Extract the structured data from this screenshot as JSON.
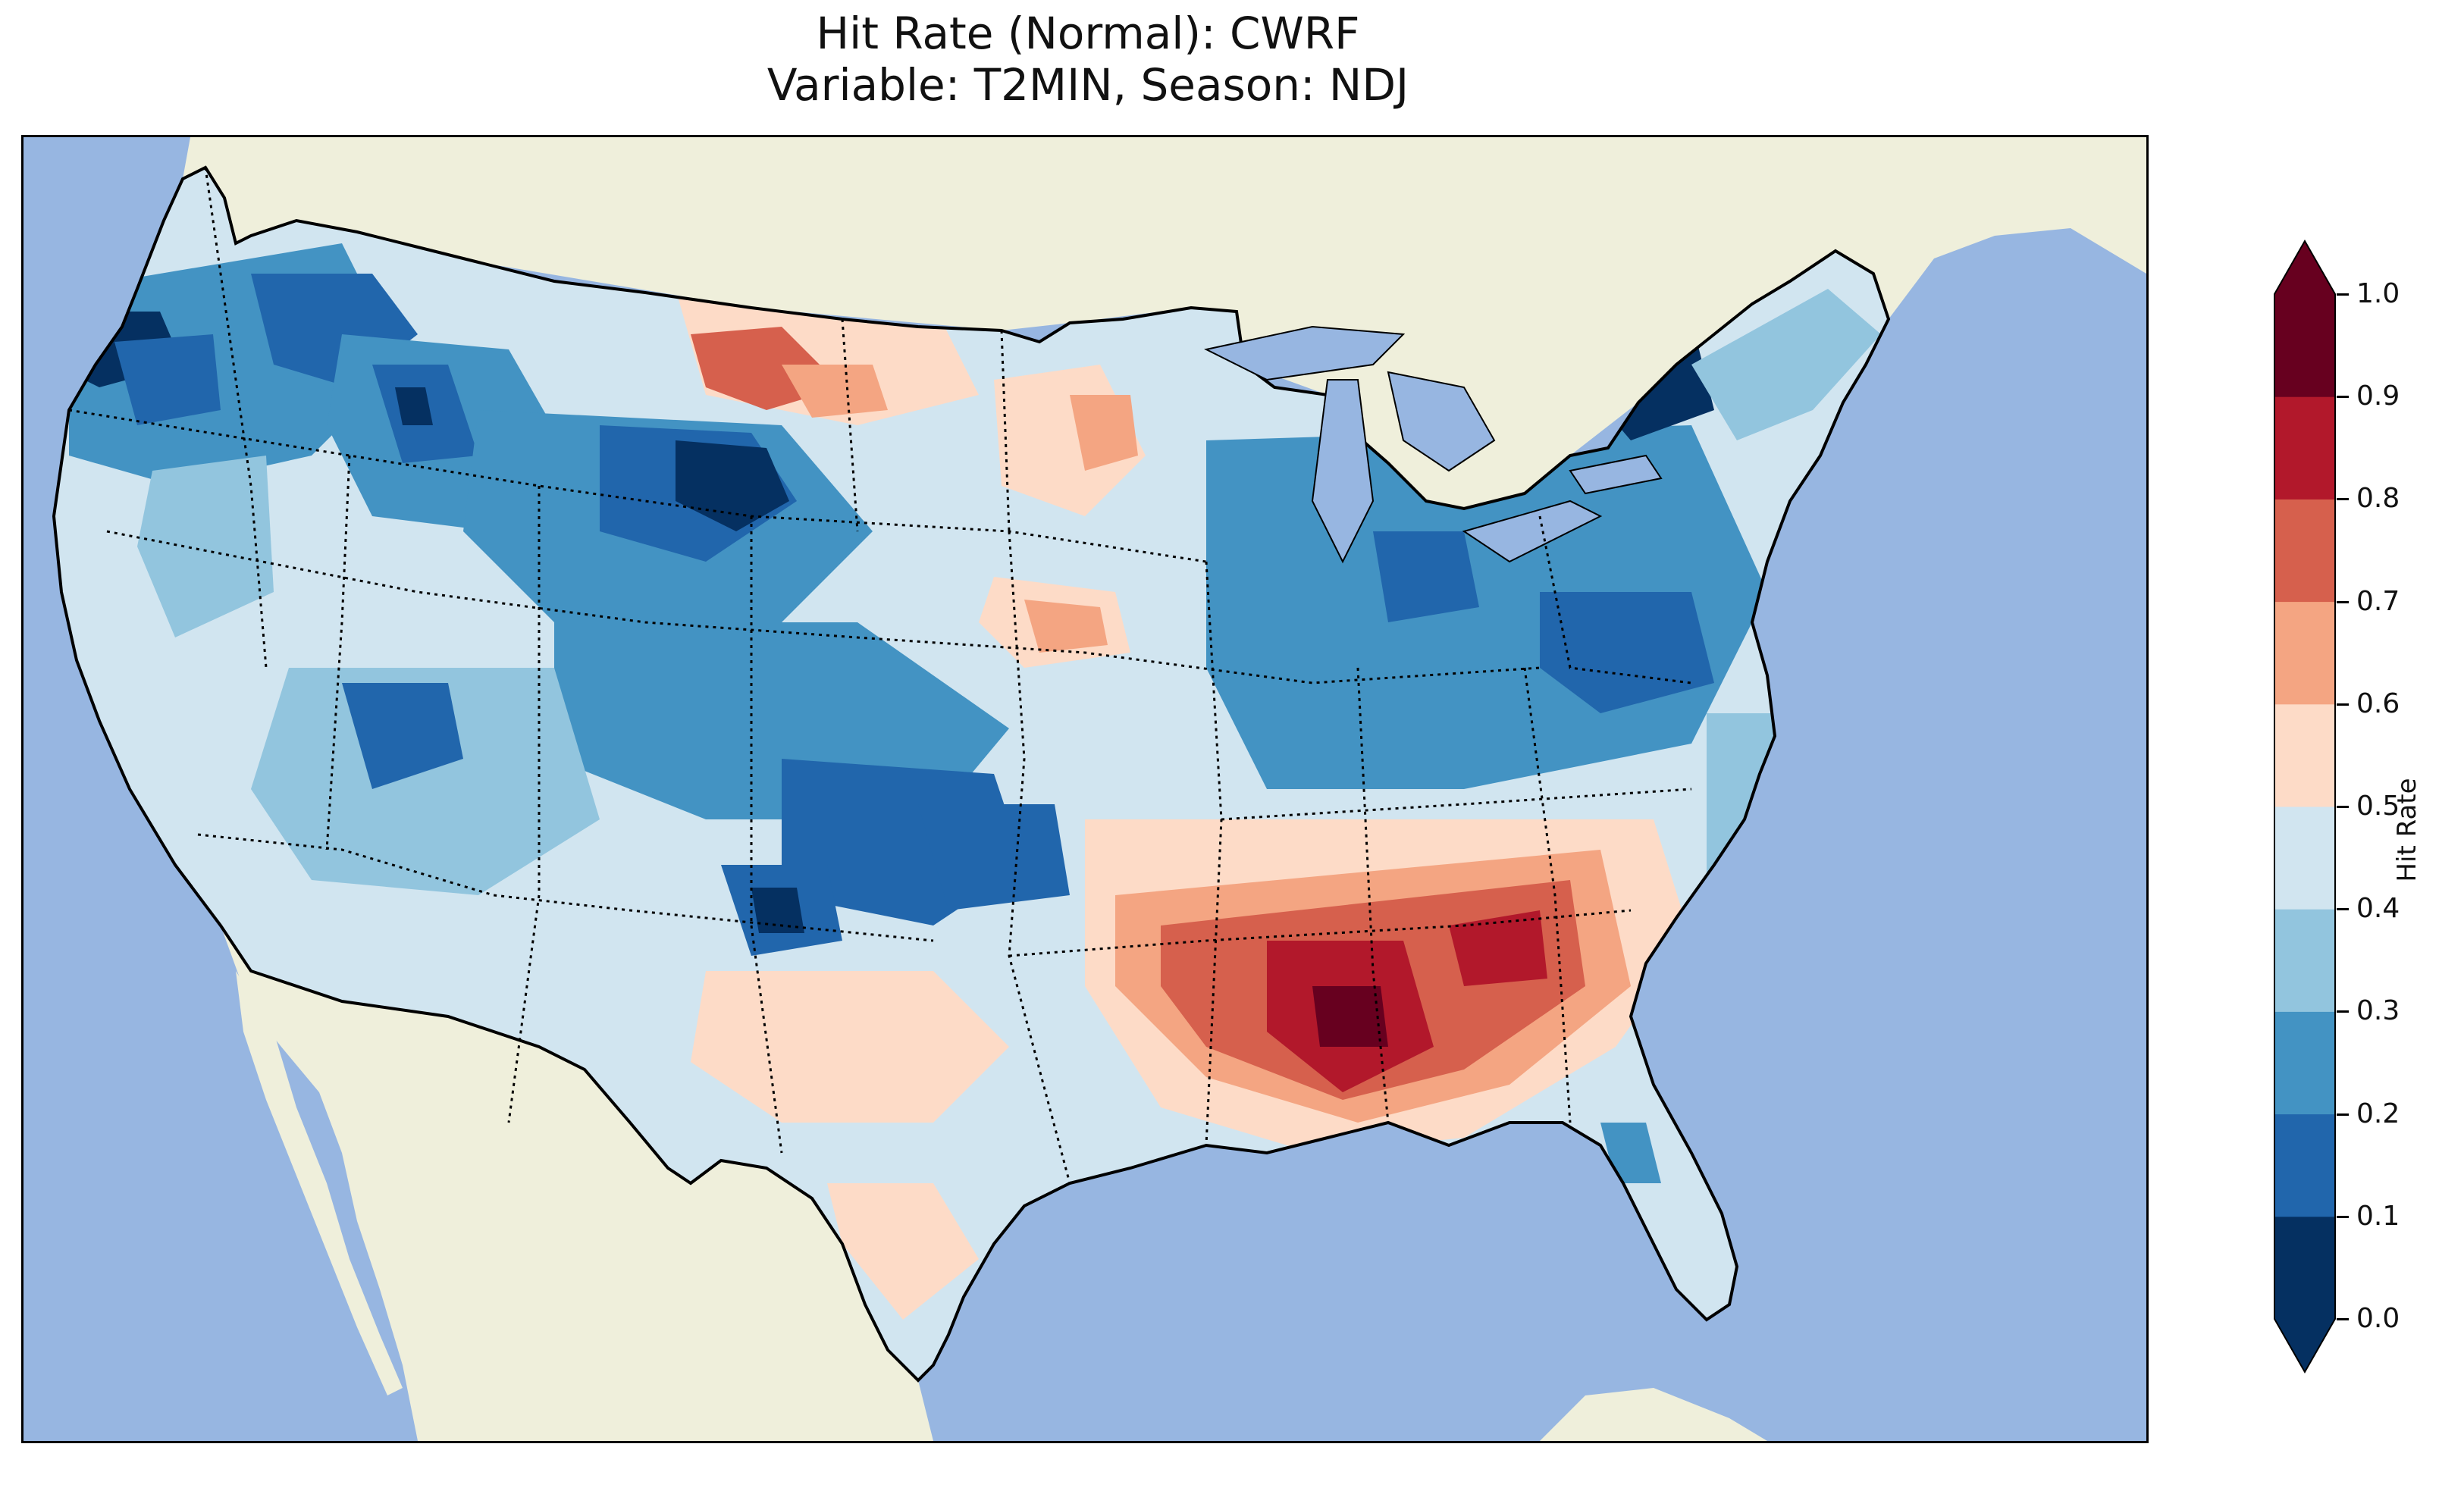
{
  "title": {
    "line1": "Hit Rate (Normal): CWRF",
    "line2": "Variable: T2MIN, Season: NDJ"
  },
  "colorbar": {
    "label": "Hit Rate",
    "ticks": [
      "0.0",
      "0.1",
      "0.2",
      "0.3",
      "0.4",
      "0.5",
      "0.6",
      "0.7",
      "0.8",
      "0.9",
      "1.0"
    ],
    "bins": [
      {
        "range": "0.0-0.1",
        "color": "#053061"
      },
      {
        "range": "0.1-0.2",
        "color": "#2166ac"
      },
      {
        "range": "0.2-0.3",
        "color": "#4393c3"
      },
      {
        "range": "0.3-0.4",
        "color": "#92c5de"
      },
      {
        "range": "0.4-0.5",
        "color": "#d1e5f0"
      },
      {
        "range": "0.5-0.6",
        "color": "#fddbc7"
      },
      {
        "range": "0.6-0.7",
        "color": "#f4a582"
      },
      {
        "range": "0.7-0.8",
        "color": "#d6604d"
      },
      {
        "range": "0.8-0.9",
        "color": "#b2182b"
      },
      {
        "range": "0.9-1.0",
        "color": "#67001f"
      }
    ],
    "extend": "both"
  },
  "map": {
    "projection": "lambert-conformal",
    "region": "contiguous-united-states",
    "ocean_color": "#97b6e1",
    "land_color": "#efefdb",
    "state_borders": "dotted",
    "coastlines": "solid"
  }
}
